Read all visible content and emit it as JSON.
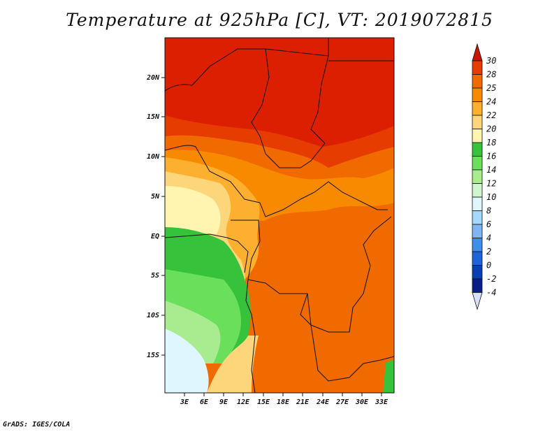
{
  "title": "Temperature at 925hPa [C], VT: 2019072815",
  "credit": "GrADS: IGES/COLA",
  "map": {
    "lat_labels": [
      "20N",
      "15N",
      "10N",
      "5N",
      "EQ",
      "5S",
      "10S",
      "15S"
    ],
    "lon_labels": [
      "3E",
      "6E",
      "9E",
      "12E",
      "15E",
      "18E",
      "21E",
      "24E",
      "27E",
      "30E",
      "33E"
    ]
  },
  "colorbar": {
    "labels": [
      "30",
      "28",
      "25",
      "24",
      "22",
      "20",
      "18",
      "16",
      "14",
      "12",
      "10",
      "8",
      "6",
      "4",
      "2",
      "0",
      "-2",
      "-4"
    ],
    "colors": [
      "#dc1f00",
      "#e63c00",
      "#f06a00",
      "#f88a00",
      "#fdb030",
      "#fdd57a",
      "#fff4b0",
      "#37c23b",
      "#6adf5c",
      "#a8ec8f",
      "#cff6cc",
      "#dff6ff",
      "#a6d8fb",
      "#7fb5f2",
      "#3e8eea",
      "#1e64d8",
      "#0a3fb2",
      "#0a1f86",
      "#050b64"
    ],
    "top_arrow_color": "#c81400",
    "bottom_arrow_color": "#d6e0fc"
  }
}
